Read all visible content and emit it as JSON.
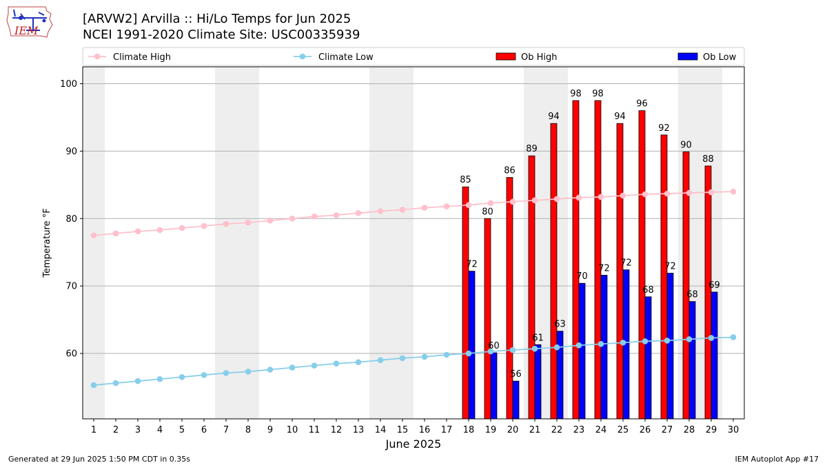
{
  "header": {
    "title_line1": "[ARVW2] Arvilla :: Hi/Lo Temps for Jun 2025",
    "title_line2": "NCEI 1991-2020 Climate Site: USC00335939"
  },
  "logo": {
    "text": "IEM"
  },
  "footer": {
    "left": "Generated at 29 Jun 2025 1:50 PM CDT in 0.35s",
    "right": "IEM Autoplot App #17"
  },
  "colors": {
    "climate_high": "#ffc0cb",
    "climate_low": "#87ceeb",
    "ob_high": "#ff0000",
    "ob_low": "#0000ff",
    "weekend_shade": "#eeeeee",
    "grid": "#b0b0b0"
  },
  "chart_data": {
    "type": "bar",
    "xlabel": "June 2025",
    "ylabel": "Temperature °F",
    "xlim": [
      0.5,
      30.5
    ],
    "ylim": [
      50.3,
      102.5
    ],
    "yticks": [
      60,
      70,
      80,
      90,
      100
    ],
    "xticks": [
      1,
      2,
      3,
      4,
      5,
      6,
      7,
      8,
      9,
      10,
      11,
      12,
      13,
      14,
      15,
      16,
      17,
      18,
      19,
      20,
      21,
      22,
      23,
      24,
      25,
      26,
      27,
      28,
      29,
      30
    ],
    "grid": "y",
    "legend_position": "top",
    "weekend_days": [
      1,
      7,
      8,
      14,
      15,
      21,
      22,
      28,
      29
    ],
    "legend": [
      {
        "label": "Climate High",
        "kind": "line",
        "series": "climate_high"
      },
      {
        "label": "Climate Low",
        "kind": "line",
        "series": "climate_low"
      },
      {
        "label": "Ob High",
        "kind": "bar",
        "series": "ob_high"
      },
      {
        "label": "Ob Low",
        "kind": "bar",
        "series": "ob_low"
      }
    ],
    "series": [
      {
        "name": "Climate High",
        "type": "line",
        "x": [
          1,
          2,
          3,
          4,
          5,
          6,
          7,
          8,
          9,
          10,
          11,
          12,
          13,
          14,
          15,
          16,
          17,
          18,
          19,
          20,
          21,
          22,
          23,
          24,
          25,
          26,
          27,
          28,
          29,
          30
        ],
        "values": [
          77.5,
          77.8,
          78.1,
          78.3,
          78.6,
          78.9,
          79.2,
          79.4,
          79.7,
          80.0,
          80.3,
          80.5,
          80.8,
          81.1,
          81.3,
          81.6,
          81.8,
          82.0,
          82.3,
          82.5,
          82.7,
          82.9,
          83.1,
          83.2,
          83.4,
          83.6,
          83.7,
          83.8,
          83.9,
          84.0
        ]
      },
      {
        "name": "Climate Low",
        "type": "line",
        "x": [
          1,
          2,
          3,
          4,
          5,
          6,
          7,
          8,
          9,
          10,
          11,
          12,
          13,
          14,
          15,
          16,
          17,
          18,
          19,
          20,
          21,
          22,
          23,
          24,
          25,
          26,
          27,
          28,
          29,
          30
        ],
        "values": [
          55.3,
          55.6,
          55.9,
          56.2,
          56.5,
          56.8,
          57.1,
          57.3,
          57.6,
          57.9,
          58.2,
          58.5,
          58.7,
          59.0,
          59.3,
          59.5,
          59.8,
          60.0,
          60.3,
          60.5,
          60.7,
          60.9,
          61.2,
          61.4,
          61.6,
          61.8,
          61.9,
          62.1,
          62.3,
          62.4
        ]
      },
      {
        "name": "Ob High",
        "type": "bar",
        "x": [
          18,
          19,
          20,
          21,
          22,
          23,
          24,
          25,
          26,
          27,
          28,
          29
        ],
        "values": [
          84.7,
          80.0,
          86.1,
          89.3,
          94.1,
          97.5,
          97.5,
          94.1,
          96.0,
          92.4,
          89.9,
          87.8
        ],
        "labels": [
          "85",
          "80",
          "86",
          "89",
          "94",
          "98",
          "98",
          "94",
          "96",
          "92",
          "90",
          "88"
        ]
      },
      {
        "name": "Ob Low",
        "type": "bar",
        "x": [
          18,
          19,
          20,
          21,
          22,
          23,
          24,
          25,
          26,
          27,
          28,
          29
        ],
        "values": [
          72.2,
          60.1,
          55.9,
          61.3,
          63.3,
          70.4,
          71.6,
          72.4,
          68.4,
          71.9,
          67.7,
          69.1
        ],
        "labels": [
          "72",
          "60",
          "56",
          "61",
          "63",
          "70",
          "72",
          "72",
          "68",
          "72",
          "68",
          "69"
        ]
      }
    ]
  }
}
